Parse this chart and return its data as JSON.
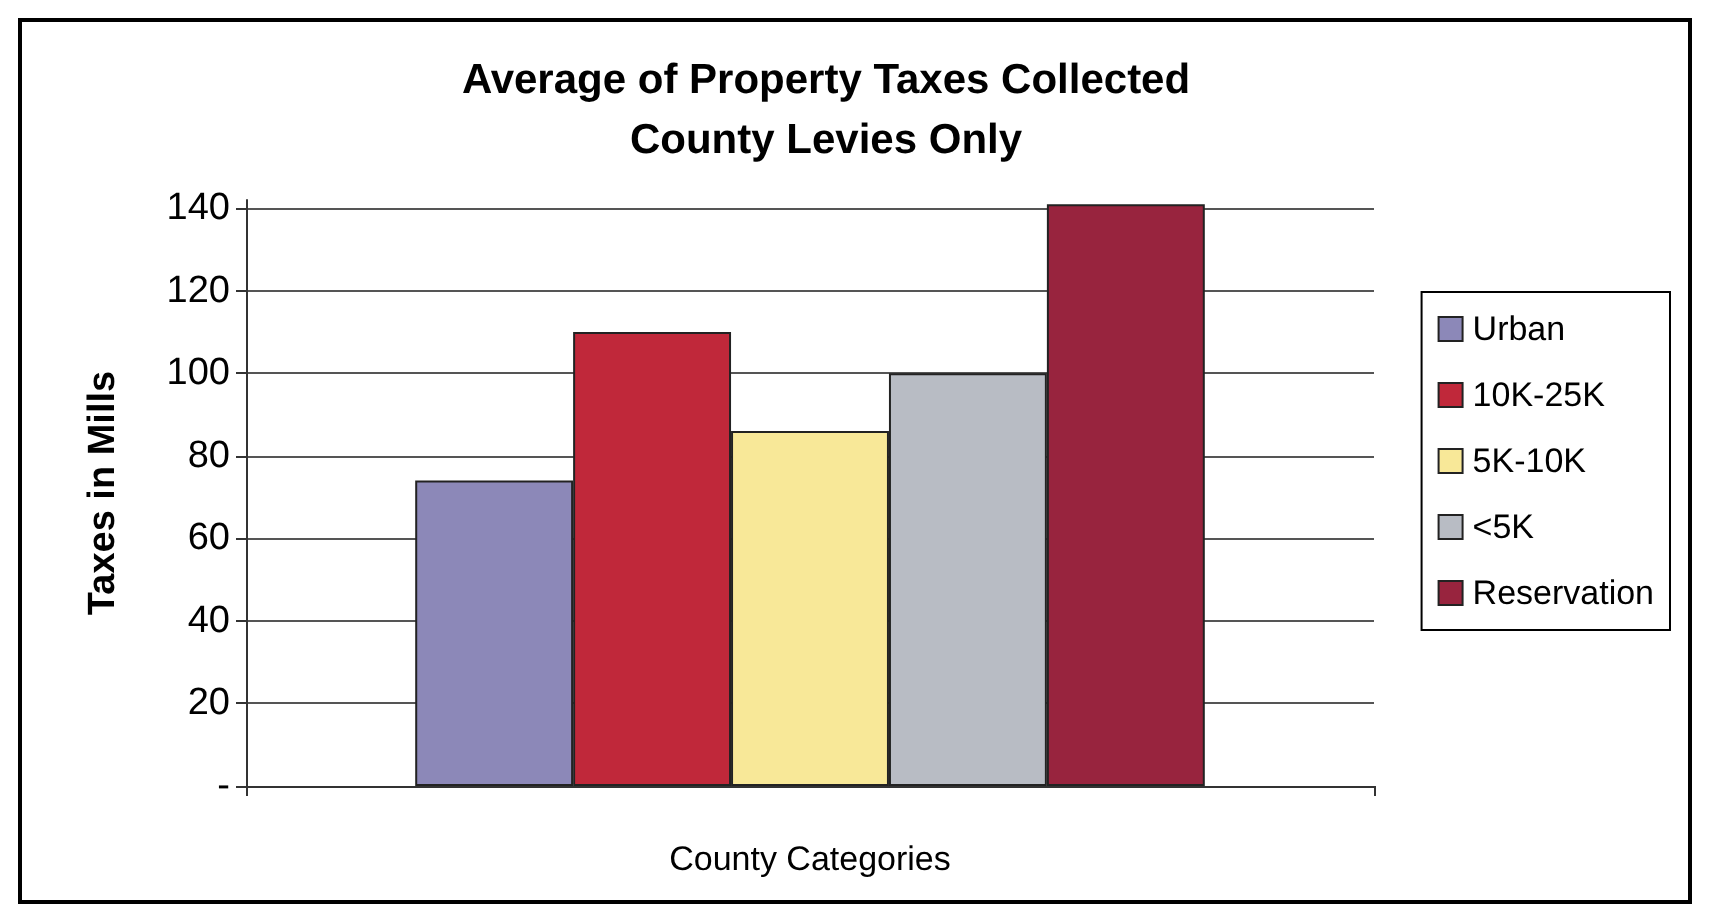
{
  "chart_data": {
    "type": "bar",
    "title": "Average of Property Taxes Collected\nCounty Levies Only",
    "xlabel": "County Categories",
    "ylabel": "Taxes in Mills",
    "categories": [
      null
    ],
    "series": [
      {
        "name": "Urban",
        "color": "#8c88b8",
        "values": [
          74
        ]
      },
      {
        "name": "10K-25K",
        "color": "#c0283a",
        "values": [
          110
        ]
      },
      {
        "name": "5K-10K",
        "color": "#f8e898",
        "values": [
          86
        ]
      },
      {
        "name": "<5K",
        "color": "#b8bcc4",
        "values": [
          100
        ]
      },
      {
        "name": "Reservation",
        "color": "#98243e",
        "values": [
          141
        ]
      }
    ],
    "ylim": [
      0,
      142
    ],
    "yticks": [
      {
        "value": 0,
        "label": "-"
      },
      20,
      40,
      60,
      80,
      100,
      120,
      140
    ],
    "grid": "y",
    "legend": "right"
  }
}
